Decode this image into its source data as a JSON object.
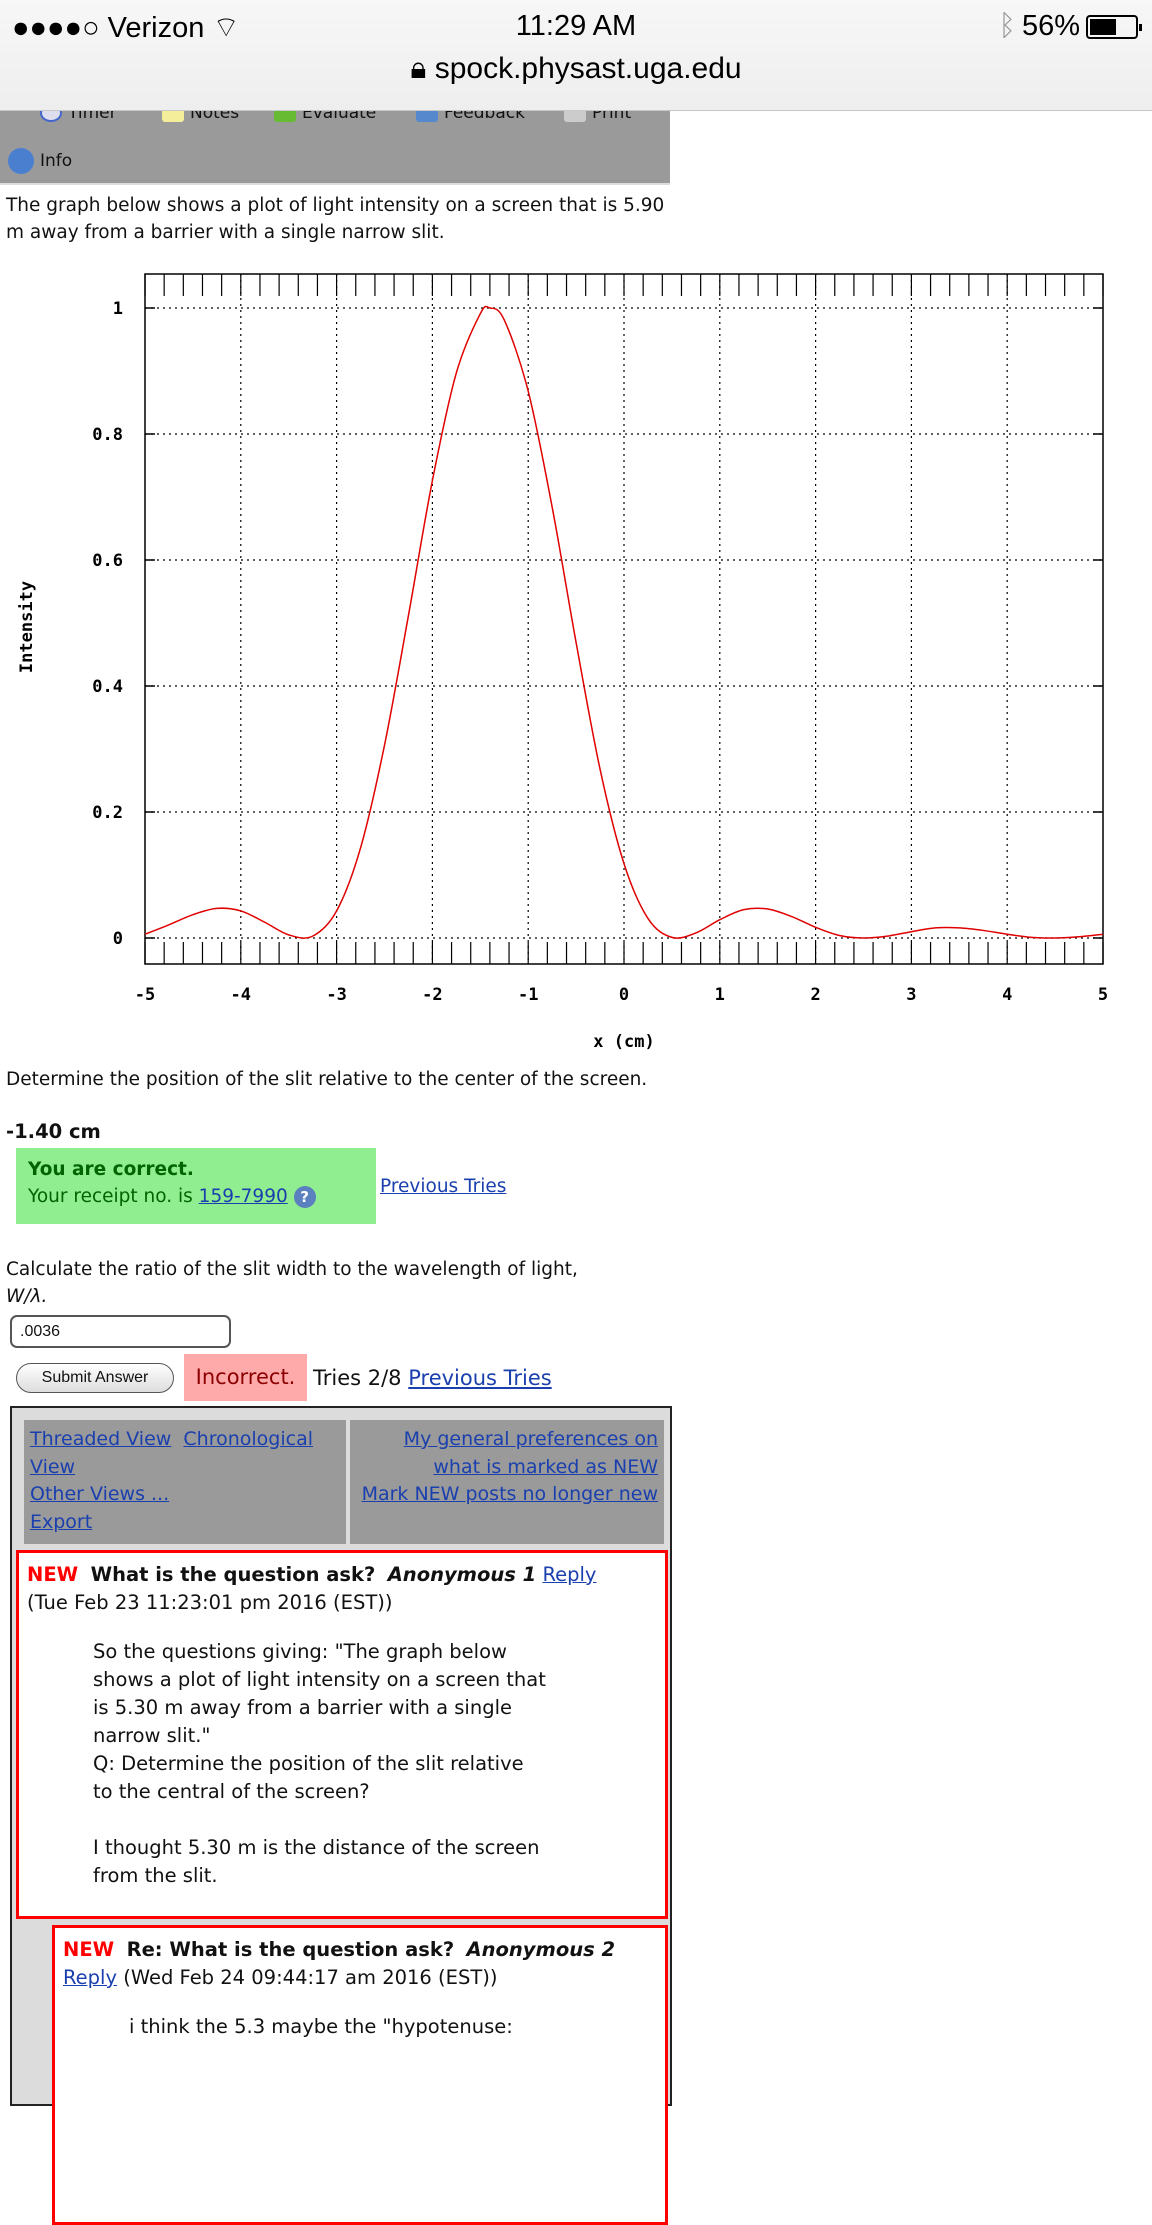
{
  "status": {
    "carrier": "Verizon",
    "time": "11:29 AM",
    "battery": "56%",
    "url": "spock.physast.uga.edu",
    "battery_level": 0.56
  },
  "toolbar": {
    "items": [
      "Timer",
      "Notes",
      "Evaluate",
      "Feedback",
      "Print"
    ],
    "info": "Info"
  },
  "question1": {
    "intro": "The graph below shows a plot of light intensity on a screen that is 5.90 m away from a barrier with a single narrow slit.",
    "prompt": "Determine the position of the slit relative to the center of the screen.",
    "answer": "-1.40 cm",
    "status": "You are correct.",
    "receipt_prefix": "Your receipt no. is ",
    "receipt": "159-7990",
    "previous_tries": "Previous Tries"
  },
  "question2": {
    "prompt": "Calculate the ratio of the slit width to the wavelength of light,",
    "symbol": "W/λ.",
    "input_value": ".0036",
    "submit": "Submit Answer",
    "status": "Incorrect.",
    "tries": "Tries 2/8",
    "previous_tries": "Previous Tries"
  },
  "forum": {
    "nav": {
      "threaded": "Threaded View",
      "chronological": "Chronological View",
      "other": "Other Views ...",
      "export": "Export",
      "prefs": "My general preferences on what is marked as NEW",
      "mark": "Mark NEW posts no longer new"
    },
    "posts": [
      {
        "badge": "NEW",
        "title": "What is the question ask?",
        "author": "Anonymous 1",
        "reply": "Reply",
        "date": "(Tue Feb 23 11:23:01 pm 2016 (EST))",
        "body": [
          "So the questions giving: \"The graph below shows a plot of light intensity on a screen that is 5.30 m away from a barrier with a single narrow slit.\"",
          "Q: Determine the position of the slit relative to the central of the screen?",
          "",
          "I thought 5.30 m is the distance of the screen from the slit."
        ]
      },
      {
        "badge": "NEW",
        "title": "Re: What is the question ask?",
        "author": "Anonymous 2",
        "reply": "Reply",
        "date": "(Wed Feb 24 09:44:17 am 2016 (EST))",
        "body": [
          "i think the 5.3 maybe the \"hypotenuse:"
        ]
      }
    ]
  },
  "chart_data": {
    "type": "line",
    "xlabel": "x (cm)",
    "ylabel": "Intensity",
    "xlim": [
      -5,
      5
    ],
    "ylim": [
      0,
      1
    ],
    "grid": true,
    "xticks": [
      "-5",
      "-4",
      "-3",
      "-2",
      "-1",
      "0",
      "1",
      "2",
      "3",
      "4",
      "5"
    ],
    "yticks": [
      "0",
      "0.2",
      "0.4",
      "0.6",
      "0.8",
      "1"
    ],
    "line_color": "#e00000",
    "x": [
      -5,
      -4.75,
      -4.5,
      -4.25,
      -4,
      -3.75,
      -3.5,
      -3.25,
      -3,
      -2.75,
      -2.5,
      -2.25,
      -2,
      -1.75,
      -1.5,
      -1.4,
      -1.25,
      -1,
      -0.75,
      -0.5,
      -0.25,
      0,
      0.25,
      0.5,
      0.75,
      1,
      1.25,
      1.5,
      1.75,
      2,
      2.25,
      2.5,
      2.75,
      3,
      3.25,
      3.5,
      3.75,
      4,
      4.25,
      4.5,
      4.75,
      5
    ],
    "y": [
      0.006,
      0.021,
      0.037,
      0.047,
      0.043,
      0.025,
      0.005,
      0.003,
      0.043,
      0.143,
      0.306,
      0.512,
      0.726,
      0.897,
      0.991,
      1.0,
      0.981,
      0.868,
      0.684,
      0.469,
      0.268,
      0.118,
      0.031,
      0.001,
      0.008,
      0.029,
      0.045,
      0.046,
      0.034,
      0.017,
      0.004,
      0.0,
      0.003,
      0.01,
      0.016,
      0.016,
      0.012,
      0.006,
      0.001,
      0.0,
      0.002,
      0.006
    ]
  }
}
